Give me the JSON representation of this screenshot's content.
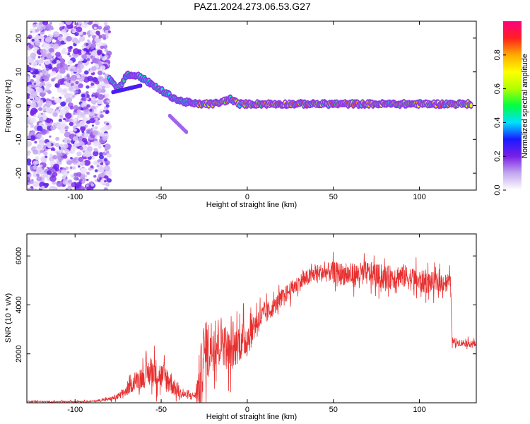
{
  "title": "PAZ1.2024.273.06.53.G27",
  "chart_data": [
    {
      "type": "heatmap",
      "xlabel": "Height of straight line (km)",
      "ylabel": "Frequency (Hz)",
      "xlim": [
        -128,
        133
      ],
      "ylim": [
        -25,
        25
      ],
      "xticks": [
        -100,
        -50,
        0,
        50,
        100
      ],
      "yticks": [
        -20,
        -10,
        0,
        10,
        20
      ],
      "colorbar": {
        "label": "Normalized spectral amplitude",
        "range": [
          0,
          1
        ],
        "ticks": [
          0.0,
          0.2,
          0.4,
          0.6,
          0.8
        ],
        "colors": [
          "#ffffff",
          "#c4a8f0",
          "#7a1fe6",
          "#1a1aff",
          "#00e0ff",
          "#00ff40",
          "#b0ff00",
          "#ffff00",
          "#ffaa00",
          "#ff2020",
          "#ff0080"
        ]
      },
      "ridge": {
        "x": [
          -80,
          -75,
          -70,
          -65,
          -60,
          -55,
          -50,
          -45,
          -40,
          -35,
          -30,
          -25,
          -20,
          -15,
          -10,
          -5,
          0,
          10,
          20,
          30,
          40,
          50,
          60,
          70,
          80,
          90,
          100,
          110,
          120,
          130
        ],
        "freq": [
          8,
          5,
          9,
          9,
          8,
          6,
          4.5,
          3,
          1.5,
          1,
          0.5,
          0.5,
          0.5,
          1,
          2,
          0.5,
          0.5,
          0.5,
          0.5,
          0.5,
          0.5,
          0.5,
          0.5,
          0.5,
          0.5,
          0.5,
          0.5,
          0.5,
          0.5,
          0.5
        ]
      },
      "noise_region_x": [
        -128,
        -80
      ]
    },
    {
      "type": "line",
      "xlabel": "Height of straight line (km)",
      "ylabel": "SNR (10 * v/v)",
      "xlim": [
        -128,
        133
      ],
      "ylim": [
        0,
        6900
      ],
      "xticks": [
        -100,
        -50,
        0,
        50,
        100
      ],
      "yticks": [
        2000,
        4000,
        6000
      ],
      "color": "#e83030",
      "x": [
        -128,
        -110,
        -90,
        -80,
        -75,
        -70,
        -65,
        -60,
        -55,
        -50,
        -45,
        -40,
        -35,
        -30,
        -28,
        -25,
        -20,
        -15,
        -10,
        -5,
        0,
        5,
        10,
        15,
        20,
        25,
        30,
        35,
        40,
        50,
        60,
        70,
        80,
        90,
        100,
        110,
        118,
        119,
        125,
        133
      ],
      "y": [
        60,
        40,
        60,
        150,
        250,
        500,
        900,
        1100,
        1300,
        1100,
        900,
        400,
        300,
        300,
        700,
        2000,
        2400,
        2600,
        2000,
        2500,
        2600,
        3300,
        3600,
        3900,
        4300,
        4600,
        4900,
        5100,
        5300,
        5350,
        5200,
        5300,
        5100,
        5200,
        4950,
        4900,
        4950,
        2500,
        2450,
        2400
      ],
      "noise_amplitude": [
        40,
        40,
        50,
        100,
        200,
        300,
        500,
        700,
        900,
        800,
        800,
        300,
        200,
        200,
        1800,
        1800,
        1600,
        1400,
        1200,
        1200,
        1100,
        800,
        700,
        500,
        500,
        500,
        500,
        500,
        500,
        600,
        700,
        700,
        700,
        700,
        700,
        600,
        500,
        250,
        200,
        200
      ]
    }
  ]
}
